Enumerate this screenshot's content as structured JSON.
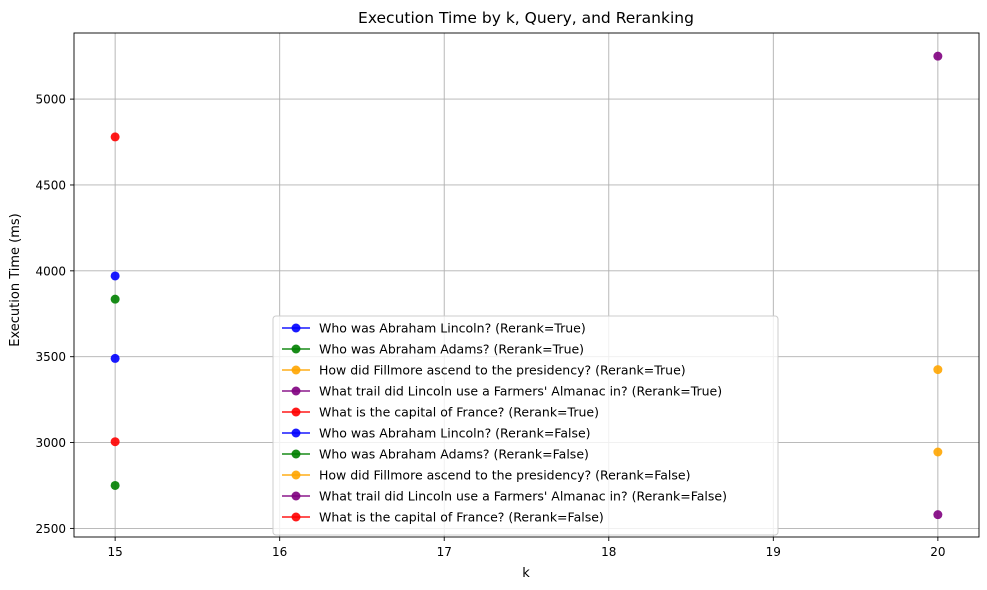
{
  "chart_data": {
    "type": "scatter",
    "title": "Execution Time by k, Query, and Reranking",
    "xlabel": "k",
    "ylabel": "Execution Time (ms)",
    "xlim": [
      14.75,
      20.25
    ],
    "ylim": [
      2450,
      5385
    ],
    "x_ticks": [
      "15",
      "16",
      "17",
      "18",
      "19",
      "20"
    ],
    "y_ticks": [
      "2500",
      "3000",
      "3500",
      "4000",
      "4500",
      "5000"
    ],
    "grid": true,
    "legend_position": "lower center",
    "series": [
      {
        "name": "Who was Abraham Lincoln? (Rerank=True)",
        "color": "#0000ff",
        "points": [
          {
            "x": 15,
            "y": 3970
          }
        ]
      },
      {
        "name": "Who was Abraham Adams? (Rerank=True)",
        "color": "#008000",
        "points": [
          {
            "x": 15,
            "y": 3835
          }
        ]
      },
      {
        "name": "How did Fillmore ascend to the presidency? (Rerank=True)",
        "color": "#ffa500",
        "points": [
          {
            "x": 20,
            "y": 3425
          }
        ]
      },
      {
        "name": "What trail did Lincoln use a Farmers' Almanac in? (Rerank=True)",
        "color": "#800080",
        "points": [
          {
            "x": 20,
            "y": 5250
          }
        ]
      },
      {
        "name": "What is the capital of France? (Rerank=True)",
        "color": "#ff0000",
        "points": [
          {
            "x": 15,
            "y": 4780
          }
        ]
      },
      {
        "name": "Who was Abraham Lincoln? (Rerank=False)",
        "color": "#0000ff",
        "points": [
          {
            "x": 15,
            "y": 3490
          }
        ]
      },
      {
        "name": "Who was Abraham Adams? (Rerank=False)",
        "color": "#008000",
        "points": [
          {
            "x": 15,
            "y": 2750
          }
        ]
      },
      {
        "name": "How did Fillmore ascend to the presidency? (Rerank=False)",
        "color": "#ffa500",
        "points": [
          {
            "x": 20,
            "y": 2945
          }
        ]
      },
      {
        "name": "What trail did Lincoln use a Farmers' Almanac in? (Rerank=False)",
        "color": "#800080",
        "points": [
          {
            "x": 20,
            "y": 2580
          }
        ]
      },
      {
        "name": "What is the capital of France? (Rerank=False)",
        "color": "#ff0000",
        "points": [
          {
            "x": 15,
            "y": 3005
          }
        ]
      }
    ]
  }
}
